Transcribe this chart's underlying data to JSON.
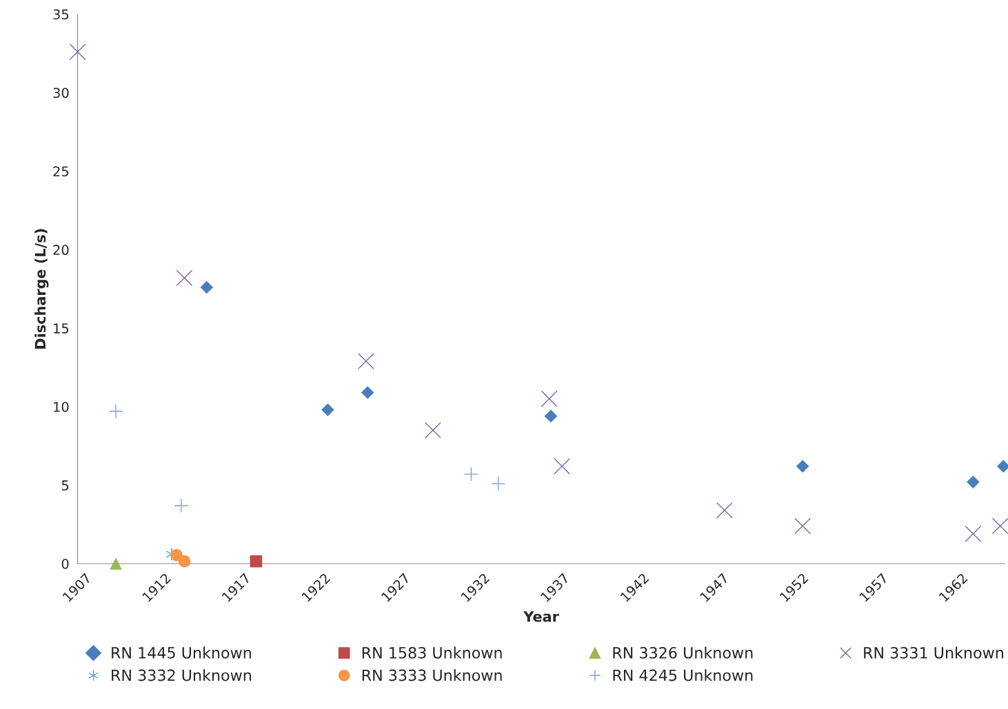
{
  "chart_data": {
    "type": "scatter",
    "xlabel": "Year",
    "ylabel": "Discharge (L/s)",
    "xlim": [
      1907,
      1965.2
    ],
    "xticks": [
      1907,
      1912,
      1917,
      1922,
      1927,
      1932,
      1937,
      1942,
      1947,
      1952,
      1957,
      1962
    ],
    "ylim": [
      0,
      35
    ],
    "yticks": [
      0,
      5,
      10,
      15,
      20,
      25,
      30,
      35
    ],
    "grid": false,
    "legend": "bottom",
    "series": [
      {
        "name": "RN 1445 Unknown",
        "color": "#4a7ebb",
        "marker": "diamond",
        "x": [
          1915.1,
          1922.7,
          1925.2,
          1936.7,
          1952.5,
          1963.2,
          1965.1
        ],
        "values": [
          17.6,
          9.8,
          10.9,
          9.4,
          6.2,
          5.2,
          6.2
        ]
      },
      {
        "name": "RN 1583 Unknown",
        "color": "#be4b48",
        "marker": "square",
        "x": [
          1918.2
        ],
        "values": [
          0.15
        ]
      },
      {
        "name": "RN 3326 Unknown",
        "color": "#98b954",
        "marker": "triangle",
        "x": [
          1909.4
        ],
        "values": [
          0
        ]
      },
      {
        "name": "RN 3331 Unknown",
        "color": "#8064a2",
        "marker": "cross",
        "x": [
          1907,
          1913.7,
          1925.1,
          1929.3,
          1936.6,
          1937.4,
          1947.6,
          1952.5,
          1963.2,
          1964.9
        ],
        "values": [
          32.6,
          18.2,
          12.9,
          8.5,
          10.5,
          6.2,
          3.4,
          2.4,
          1.9,
          2.4
        ]
      },
      {
        "name": "RN 3332 Unknown",
        "color": "#4bacc6",
        "x": [
          1912.9
        ],
        "values": [
          0.6
        ]
      },
      {
        "name": "RN 3333 Unknown",
        "color": "#f79646",
        "marker": "circle",
        "x": [
          1913.2,
          1913.7
        ],
        "values": [
          0.55,
          0.15
        ]
      },
      {
        "name": "RN 4245 Unknown",
        "color": "#7f9fcf",
        "marker": "plus",
        "x": [
          1909.4,
          1913.5,
          1931.7,
          1933.4
        ],
        "values": [
          9.7,
          3.7,
          5.7,
          5.1
        ]
      }
    ]
  }
}
